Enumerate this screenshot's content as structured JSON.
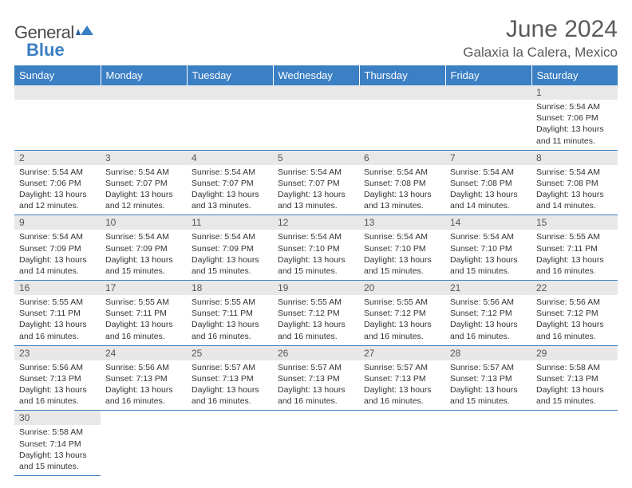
{
  "logo": {
    "text1": "General",
    "text2": "Blue"
  },
  "title": "June 2024",
  "location": "Galaxia la Calera, Mexico",
  "colors": {
    "header_bg": "#3b7fc4",
    "header_text": "#ffffff",
    "daynum_bg": "#e8e8e8",
    "daynum_text": "#555555",
    "body_text": "#333333",
    "rule": "#3b7fc4"
  },
  "weekdays": [
    "Sunday",
    "Monday",
    "Tuesday",
    "Wednesday",
    "Thursday",
    "Friday",
    "Saturday"
  ],
  "first_weekday_index": 6,
  "days": [
    {
      "n": 1,
      "sunrise": "5:54 AM",
      "sunset": "7:06 PM",
      "daylight": "13 hours and 11 minutes."
    },
    {
      "n": 2,
      "sunrise": "5:54 AM",
      "sunset": "7:06 PM",
      "daylight": "13 hours and 12 minutes."
    },
    {
      "n": 3,
      "sunrise": "5:54 AM",
      "sunset": "7:07 PM",
      "daylight": "13 hours and 12 minutes."
    },
    {
      "n": 4,
      "sunrise": "5:54 AM",
      "sunset": "7:07 PM",
      "daylight": "13 hours and 13 minutes."
    },
    {
      "n": 5,
      "sunrise": "5:54 AM",
      "sunset": "7:07 PM",
      "daylight": "13 hours and 13 minutes."
    },
    {
      "n": 6,
      "sunrise": "5:54 AM",
      "sunset": "7:08 PM",
      "daylight": "13 hours and 13 minutes."
    },
    {
      "n": 7,
      "sunrise": "5:54 AM",
      "sunset": "7:08 PM",
      "daylight": "13 hours and 14 minutes."
    },
    {
      "n": 8,
      "sunrise": "5:54 AM",
      "sunset": "7:08 PM",
      "daylight": "13 hours and 14 minutes."
    },
    {
      "n": 9,
      "sunrise": "5:54 AM",
      "sunset": "7:09 PM",
      "daylight": "13 hours and 14 minutes."
    },
    {
      "n": 10,
      "sunrise": "5:54 AM",
      "sunset": "7:09 PM",
      "daylight": "13 hours and 15 minutes."
    },
    {
      "n": 11,
      "sunrise": "5:54 AM",
      "sunset": "7:09 PM",
      "daylight": "13 hours and 15 minutes."
    },
    {
      "n": 12,
      "sunrise": "5:54 AM",
      "sunset": "7:10 PM",
      "daylight": "13 hours and 15 minutes."
    },
    {
      "n": 13,
      "sunrise": "5:54 AM",
      "sunset": "7:10 PM",
      "daylight": "13 hours and 15 minutes."
    },
    {
      "n": 14,
      "sunrise": "5:54 AM",
      "sunset": "7:10 PM",
      "daylight": "13 hours and 15 minutes."
    },
    {
      "n": 15,
      "sunrise": "5:55 AM",
      "sunset": "7:11 PM",
      "daylight": "13 hours and 16 minutes."
    },
    {
      "n": 16,
      "sunrise": "5:55 AM",
      "sunset": "7:11 PM",
      "daylight": "13 hours and 16 minutes."
    },
    {
      "n": 17,
      "sunrise": "5:55 AM",
      "sunset": "7:11 PM",
      "daylight": "13 hours and 16 minutes."
    },
    {
      "n": 18,
      "sunrise": "5:55 AM",
      "sunset": "7:11 PM",
      "daylight": "13 hours and 16 minutes."
    },
    {
      "n": 19,
      "sunrise": "5:55 AM",
      "sunset": "7:12 PM",
      "daylight": "13 hours and 16 minutes."
    },
    {
      "n": 20,
      "sunrise": "5:55 AM",
      "sunset": "7:12 PM",
      "daylight": "13 hours and 16 minutes."
    },
    {
      "n": 21,
      "sunrise": "5:56 AM",
      "sunset": "7:12 PM",
      "daylight": "13 hours and 16 minutes."
    },
    {
      "n": 22,
      "sunrise": "5:56 AM",
      "sunset": "7:12 PM",
      "daylight": "13 hours and 16 minutes."
    },
    {
      "n": 23,
      "sunrise": "5:56 AM",
      "sunset": "7:13 PM",
      "daylight": "13 hours and 16 minutes."
    },
    {
      "n": 24,
      "sunrise": "5:56 AM",
      "sunset": "7:13 PM",
      "daylight": "13 hours and 16 minutes."
    },
    {
      "n": 25,
      "sunrise": "5:57 AM",
      "sunset": "7:13 PM",
      "daylight": "13 hours and 16 minutes."
    },
    {
      "n": 26,
      "sunrise": "5:57 AM",
      "sunset": "7:13 PM",
      "daylight": "13 hours and 16 minutes."
    },
    {
      "n": 27,
      "sunrise": "5:57 AM",
      "sunset": "7:13 PM",
      "daylight": "13 hours and 16 minutes."
    },
    {
      "n": 28,
      "sunrise": "5:57 AM",
      "sunset": "7:13 PM",
      "daylight": "13 hours and 15 minutes."
    },
    {
      "n": 29,
      "sunrise": "5:58 AM",
      "sunset": "7:13 PM",
      "daylight": "13 hours and 15 minutes."
    },
    {
      "n": 30,
      "sunrise": "5:58 AM",
      "sunset": "7:14 PM",
      "daylight": "13 hours and 15 minutes."
    }
  ],
  "labels": {
    "sunrise": "Sunrise:",
    "sunset": "Sunset:",
    "daylight": "Daylight:"
  }
}
